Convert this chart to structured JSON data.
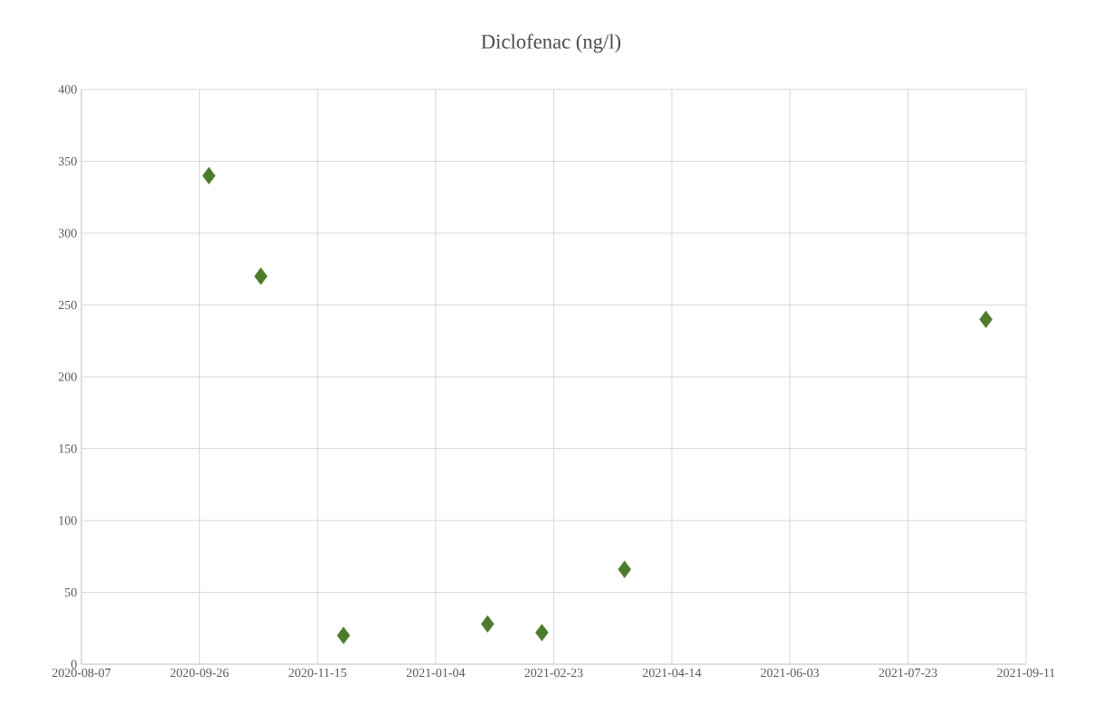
{
  "chart_data": {
    "type": "scatter",
    "title": "Diclofenac (ng/l)",
    "x": [
      "2020-09-30",
      "2020-10-22",
      "2020-11-26",
      "2021-01-26",
      "2021-02-18",
      "2021-03-25",
      "2021-08-25"
    ],
    "values": [
      340,
      270,
      20,
      28,
      22,
      66,
      240
    ],
    "color": "#4e7a2c",
    "marker": "diamond",
    "grid": true,
    "xlim": [
      "2020-08-07",
      "2021-09-11"
    ],
    "xticks": [
      "2020-08-07",
      "2020-09-26",
      "2020-11-15",
      "2021-01-04",
      "2021-02-23",
      "2021-04-14",
      "2021-06-03",
      "2021-07-23",
      "2021-09-11"
    ],
    "ylim": [
      0,
      400
    ],
    "yticks": [
      0,
      50,
      100,
      150,
      200,
      250,
      300,
      350,
      400
    ]
  }
}
